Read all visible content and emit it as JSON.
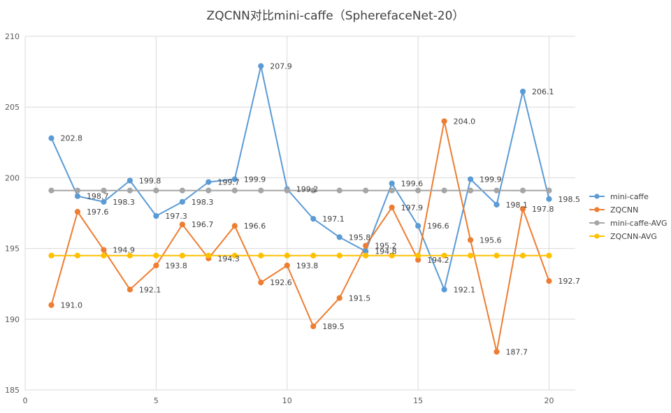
{
  "chart_data": {
    "type": "scatter",
    "title": "ZQCNN对比mini-caffe（SpherefaceNet-20）",
    "xlabel": "",
    "ylabel": "",
    "xlim": [
      0,
      21
    ],
    "ylim": [
      185,
      210
    ],
    "xticks": [
      0,
      5,
      10,
      15,
      20
    ],
    "yticks": [
      185,
      190,
      195,
      200,
      205,
      210
    ],
    "grid": true,
    "legend_position": "right",
    "x": [
      1,
      2,
      3,
      4,
      5,
      6,
      7,
      8,
      9,
      10,
      11,
      12,
      13,
      14,
      15,
      16,
      17,
      18,
      19,
      20
    ],
    "series": [
      {
        "name": "mini-caffe",
        "color": "#5b9bd5",
        "show_labels": true,
        "values": [
          202.8,
          198.7,
          198.3,
          199.8,
          197.3,
          198.3,
          199.7,
          199.9,
          207.9,
          199.2,
          197.1,
          195.8,
          194.8,
          199.6,
          196.6,
          192.1,
          199.9,
          198.1,
          206.1,
          198.5
        ]
      },
      {
        "name": "ZQCNN",
        "color": "#ed7d31",
        "show_labels": true,
        "values": [
          191.0,
          197.6,
          194.9,
          192.1,
          193.8,
          196.7,
          194.3,
          196.6,
          192.6,
          193.8,
          189.5,
          191.5,
          195.2,
          197.9,
          194.2,
          204.0,
          195.6,
          187.7,
          197.8,
          192.7
        ]
      },
      {
        "name": "mini-caffe-AVG",
        "color": "#a5a5a5",
        "show_labels": false,
        "values": [
          199.1,
          199.1,
          199.1,
          199.1,
          199.1,
          199.1,
          199.1,
          199.1,
          199.1,
          199.1,
          199.1,
          199.1,
          199.1,
          199.1,
          199.1,
          199.1,
          199.1,
          199.1,
          199.1,
          199.1
        ]
      },
      {
        "name": "ZQCNN-AVG",
        "color": "#ffc000",
        "show_labels": false,
        "values": [
          194.5,
          194.5,
          194.5,
          194.5,
          194.5,
          194.5,
          194.5,
          194.5,
          194.5,
          194.5,
          194.5,
          194.5,
          194.5,
          194.5,
          194.5,
          194.5,
          194.5,
          194.5,
          194.5,
          194.5
        ]
      }
    ]
  }
}
